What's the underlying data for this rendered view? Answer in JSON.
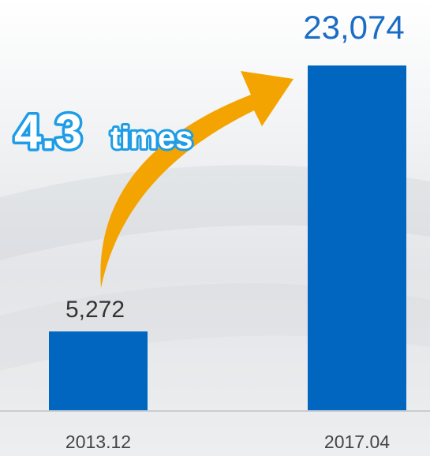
{
  "chart_data": {
    "type": "bar",
    "categories": [
      "2013.12",
      "2017.04"
    ],
    "values": [
      5272,
      23074
    ],
    "value_labels": [
      "5,272",
      "23,074"
    ],
    "value_label_colors": [
      "#333333",
      "#1b6cc4"
    ],
    "color": "#0066c0",
    "annotation": [
      "4.3",
      "times"
    ]
  }
}
